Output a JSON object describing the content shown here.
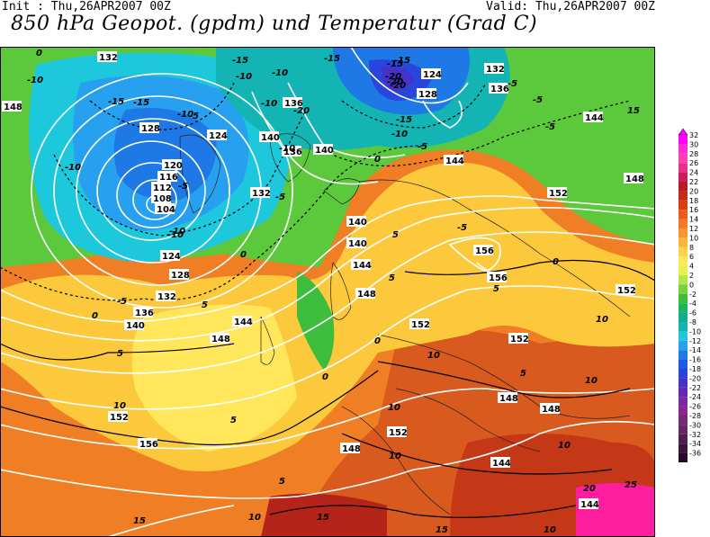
{
  "header": {
    "init": "Init : Thu,26APR2007 00Z",
    "valid": "Valid: Thu,26APR2007 00Z",
    "title": "850 hPa Geopot. (gpdm) und Temperatur (Grad C)"
  },
  "colorbar": {
    "labels": [
      "32",
      "30",
      "28",
      "26",
      "24",
      "22",
      "20",
      "18",
      "16",
      "14",
      "12",
      "10",
      "8",
      "6",
      "4",
      "2",
      "0",
      "-2",
      "-4",
      "-6",
      "-8",
      "-10",
      "-12",
      "-14",
      "-16",
      "-18",
      "-20",
      "-22",
      "-24",
      "-26",
      "-28",
      "-30",
      "-32",
      "-34",
      "-36"
    ],
    "colors": [
      "#ff00ff",
      "#ff2ad4",
      "#ff40b0",
      "#e8308c",
      "#cc1e5a",
      "#b41a28",
      "#c82814",
      "#dc3c14",
      "#ec5a1e",
      "#f47828",
      "#f89632",
      "#fcb43c",
      "#ffd24a",
      "#ffe65a",
      "#e6f050",
      "#b4e646",
      "#78d23c",
      "#3cbe3c",
      "#1eb45a",
      "#14aa8c",
      "#14b4b4",
      "#1ec8dc",
      "#28a0f0",
      "#1e78e6",
      "#1e5ae6",
      "#2846dc",
      "#4632c8",
      "#6428b4",
      "#7828a0",
      "#8c288c",
      "#782878",
      "#642864",
      "#501e50",
      "#3c143c",
      "#280a28"
    ]
  },
  "map_labels": {
    "geopotential": [
      "132",
      "148",
      "128",
      "124",
      "120",
      "116",
      "112",
      "108",
      "104",
      "124",
      "128",
      "132",
      "136",
      "140",
      "144",
      "148",
      "152",
      "156",
      "136",
      "140",
      "132",
      "124",
      "128",
      "132",
      "136",
      "140",
      "144",
      "148",
      "152",
      "156",
      "140",
      "144",
      "148",
      "152",
      "156",
      "148",
      "152",
      "144",
      "148",
      "144",
      "144",
      "152",
      "148",
      "136",
      "140",
      "152"
    ],
    "temperature": [
      "0",
      "-10",
      "-15",
      "-10",
      "-15",
      "-10",
      "-15",
      "-5",
      "-10",
      "-20",
      "-15",
      "-10",
      "-15",
      "-5",
      "-10",
      "-10",
      "-5",
      "-10",
      "-15",
      "-20",
      "-20",
      "-15",
      "-10",
      "-5",
      "-5",
      "-5",
      "-5",
      "-5",
      "0",
      "0",
      "0",
      "5",
      "5",
      "5",
      "5",
      "5",
      "10",
      "10",
      "10",
      "10",
      "15",
      "10",
      "10",
      "10",
      "15",
      "15",
      "10",
      "20",
      "25",
      "5",
      "0",
      "0",
      "5",
      "10",
      "15",
      "-5",
      "5",
      "0",
      "-10",
      "-20"
    ]
  }
}
